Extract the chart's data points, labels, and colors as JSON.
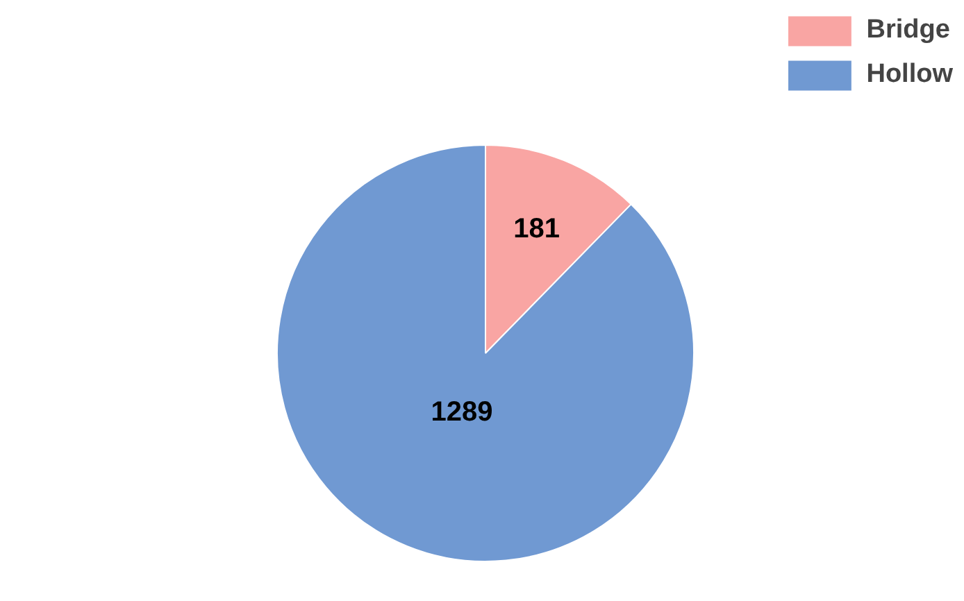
{
  "chart_data": {
    "type": "pie",
    "categories": [
      "Bridge",
      "Hollow"
    ],
    "values": [
      181,
      1289
    ],
    "colors": [
      "#f9a5a3",
      "#7099d2"
    ],
    "data_labels": true,
    "legend": "top right"
  }
}
